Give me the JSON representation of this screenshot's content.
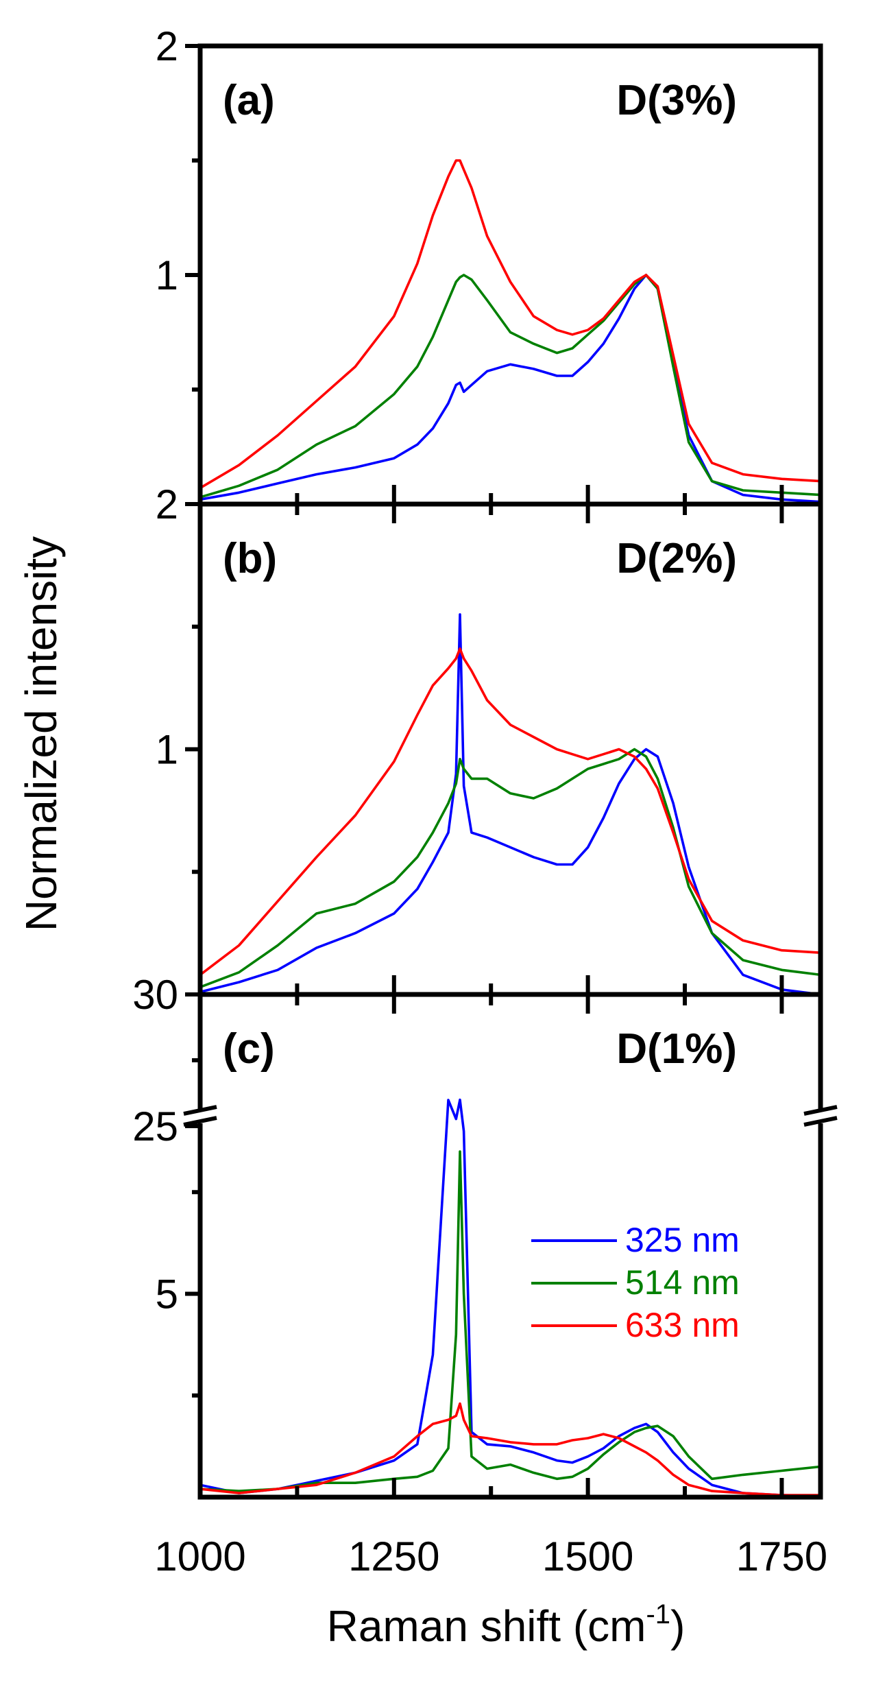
{
  "chart_data": {
    "type": "line",
    "xlabel": "Raman shift (cm",
    "xlabel_sup": "-1",
    "xlabel_end": ")",
    "ylabel": "Normalized intensity",
    "xlim": [
      1000,
      1800
    ],
    "x_ticks": [
      1000,
      1250,
      1500,
      1750
    ],
    "x_tick_labels": [
      "1000",
      "1250",
      "1500",
      "1750"
    ],
    "colors": {
      "325 nm": "#0000ff",
      "514 nm": "#008000",
      "633 nm": "#ff0000"
    },
    "legend": [
      "325 nm",
      "514 nm",
      "633 nm"
    ],
    "legend_position": "center-right of panel (c)",
    "x": [
      1000,
      1050,
      1100,
      1150,
      1200,
      1250,
      1280,
      1300,
      1320,
      1330,
      1335,
      1340,
      1350,
      1370,
      1400,
      1430,
      1460,
      1480,
      1500,
      1520,
      1540,
      1560,
      1575,
      1590,
      1610,
      1630,
      1660,
      1700,
      1750,
      1800
    ],
    "panels": [
      {
        "label": "(a)",
        "title": "D(3%)",
        "ylim": [
          0,
          2
        ],
        "y_tick_labels": [
          {
            "value": 1,
            "text": "1"
          },
          {
            "value": 2,
            "text": "2"
          }
        ],
        "y_minor_ticks": [
          0.5,
          1.5
        ],
        "series": [
          {
            "name": "325 nm",
            "values": [
              0.02,
              0.05,
              0.09,
              0.13,
              0.16,
              0.2,
              0.26,
              0.33,
              0.44,
              0.52,
              0.53,
              0.49,
              0.52,
              0.58,
              0.61,
              0.59,
              0.56,
              0.56,
              0.62,
              0.7,
              0.81,
              0.94,
              1.0,
              0.94,
              0.62,
              0.3,
              0.1,
              0.04,
              0.02,
              0.01
            ]
          },
          {
            "name": "514 nm",
            "values": [
              0.03,
              0.08,
              0.15,
              0.26,
              0.34,
              0.48,
              0.6,
              0.73,
              0.89,
              0.97,
              0.99,
              1.0,
              0.98,
              0.89,
              0.75,
              0.7,
              0.66,
              0.68,
              0.74,
              0.8,
              0.88,
              0.96,
              1.0,
              0.94,
              0.6,
              0.27,
              0.1,
              0.06,
              0.05,
              0.04
            ]
          },
          {
            "name": "633 nm",
            "values": [
              0.07,
              0.17,
              0.3,
              0.45,
              0.6,
              0.82,
              1.05,
              1.26,
              1.43,
              1.5,
              1.5,
              1.46,
              1.38,
              1.17,
              0.97,
              0.82,
              0.76,
              0.74,
              0.76,
              0.81,
              0.89,
              0.97,
              1.0,
              0.95,
              0.65,
              0.35,
              0.18,
              0.13,
              0.11,
              0.1
            ]
          }
        ]
      },
      {
        "label": "(b)",
        "title": "D(2%)",
        "ylim": [
          0,
          2
        ],
        "y_tick_labels": [
          {
            "value": 1,
            "text": "1"
          },
          {
            "value": 2,
            "text": "2"
          }
        ],
        "y_minor_ticks": [
          0.5,
          1.5
        ],
        "series": [
          {
            "name": "325 nm",
            "values": [
              0.01,
              0.05,
              0.1,
              0.19,
              0.25,
              0.33,
              0.43,
              0.54,
              0.66,
              0.9,
              1.55,
              0.85,
              0.66,
              0.64,
              0.6,
              0.56,
              0.53,
              0.53,
              0.6,
              0.72,
              0.86,
              0.96,
              1.0,
              0.97,
              0.78,
              0.52,
              0.25,
              0.08,
              0.02,
              0.0
            ]
          },
          {
            "name": "514 nm",
            "values": [
              0.03,
              0.09,
              0.2,
              0.33,
              0.37,
              0.46,
              0.56,
              0.66,
              0.78,
              0.86,
              0.96,
              0.92,
              0.88,
              0.88,
              0.82,
              0.8,
              0.84,
              0.88,
              0.92,
              0.94,
              0.96,
              1.0,
              0.97,
              0.88,
              0.68,
              0.44,
              0.25,
              0.14,
              0.1,
              0.08
            ]
          },
          {
            "name": "633 nm",
            "values": [
              0.08,
              0.2,
              0.38,
              0.56,
              0.73,
              0.95,
              1.14,
              1.26,
              1.33,
              1.37,
              1.41,
              1.37,
              1.32,
              1.2,
              1.1,
              1.05,
              1.0,
              0.98,
              0.96,
              0.98,
              1.0,
              0.97,
              0.92,
              0.84,
              0.66,
              0.47,
              0.3,
              0.22,
              0.18,
              0.17
            ]
          }
        ]
      },
      {
        "label": "(c)",
        "title": "D(1%)",
        "ylim": [
          0,
          30
        ],
        "axis_break": {
          "between": [
            10,
            25
          ],
          "break_ticks": [
            25,
            30
          ]
        },
        "y_tick_labels": [
          {
            "value": 5,
            "text": "5"
          },
          {
            "value": 25,
            "text": "25"
          },
          {
            "value": 30,
            "text": "30"
          }
        ],
        "y_minor_ticks": [
          2.5,
          7.5,
          27.5
        ],
        "series": [
          {
            "name": "325 nm",
            "values": [
              0.3,
              0.1,
              0.2,
              0.4,
              0.6,
              0.9,
              1.3,
              3.5,
              14.0,
              22.0,
              26.0,
              9.0,
              1.6,
              1.3,
              1.25,
              1.1,
              0.9,
              0.85,
              1.0,
              1.2,
              1.5,
              1.7,
              1.8,
              1.6,
              1.1,
              0.7,
              0.3,
              0.1,
              0.05,
              0.02
            ]
          },
          {
            "name": "514 nm",
            "values": [
              0.2,
              0.15,
              0.2,
              0.35,
              0.35,
              0.45,
              0.5,
              0.65,
              1.2,
              4.0,
              8.5,
              5.0,
              1.0,
              0.7,
              0.8,
              0.6,
              0.45,
              0.5,
              0.7,
              1.05,
              1.35,
              1.6,
              1.7,
              1.75,
              1.5,
              1.0,
              0.45,
              0.55,
              0.65,
              0.75
            ]
          },
          {
            "name": "633 nm",
            "values": [
              0.2,
              0.1,
              0.2,
              0.3,
              0.6,
              1.0,
              1.5,
              1.8,
              1.9,
              2.0,
              2.3,
              1.9,
              1.5,
              1.45,
              1.35,
              1.3,
              1.3,
              1.4,
              1.45,
              1.55,
              1.45,
              1.25,
              1.1,
              0.9,
              0.55,
              0.3,
              0.15,
              0.1,
              0.05,
              0.05
            ]
          }
        ]
      }
    ]
  }
}
